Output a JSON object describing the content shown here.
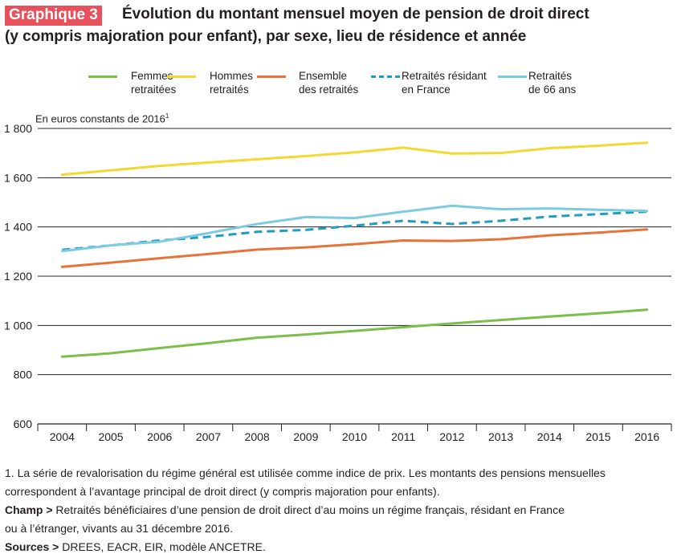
{
  "header": {
    "badge": "Graphique 3",
    "title_line1": "Évolution du montant mensuel moyen de pension de droit direct",
    "title_line2": "(y compris majoration pour enfant), par sexe, lieu de résidence et année"
  },
  "unit_label": "En euros constants de 2016",
  "unit_sup": "1",
  "colors": {
    "femmes": "#7dbd4a",
    "hommes": "#f2d832",
    "ensemble": "#e8733a",
    "france": "#1f9dbf",
    "age66": "#7ccbe0",
    "grid": "#231f20"
  },
  "chart_data": {
    "type": "line",
    "title": "Évolution du montant mensuel moyen de pension de droit direct",
    "ylabel": "En euros constants de 2016",
    "ylim": [
      600,
      1800
    ],
    "yticks": [
      600,
      800,
      1000,
      1200,
      1400,
      1600,
      1800
    ],
    "ytick_labels": [
      "600",
      "800",
      "1 000",
      "1 200",
      "1 400",
      "1 600",
      "1 800"
    ],
    "categories": [
      "2004",
      "2005",
      "2006",
      "2007",
      "2008",
      "2009",
      "2010",
      "2011",
      "2012",
      "2013",
      "2014",
      "2015",
      "2016"
    ],
    "series": [
      {
        "key": "femmes",
        "name": "Femmes\nretraitées",
        "values": [
          873,
          887,
          908,
          928,
          950,
          963,
          978,
          993,
          1008,
          1022,
          1036,
          1049,
          1064
        ],
        "dashed": false
      },
      {
        "key": "hommes",
        "name": "Hommes\nretraités",
        "values": [
          1612,
          1630,
          1648,
          1662,
          1675,
          1688,
          1703,
          1722,
          1698,
          1700,
          1720,
          1730,
          1742
        ],
        "dashed": false
      },
      {
        "key": "ensemble",
        "name": "Ensemble\ndes retraités",
        "values": [
          1238,
          1255,
          1273,
          1290,
          1308,
          1317,
          1330,
          1345,
          1343,
          1350,
          1366,
          1377,
          1390
        ],
        "dashed": false
      },
      {
        "key": "france",
        "name": "Retraités résidant\nen France",
        "values": [
          1307,
          1325,
          1345,
          1360,
          1380,
          1388,
          1405,
          1425,
          1412,
          1425,
          1442,
          1452,
          1462
        ],
        "dashed": true
      },
      {
        "key": "age66",
        "name": "Retraités\nde 66 ans",
        "values": [
          1302,
          1325,
          1340,
          1375,
          1412,
          1440,
          1436,
          1462,
          1486,
          1472,
          1475,
          1470,
          1465
        ],
        "dashed": false
      }
    ]
  },
  "notes": {
    "note1_line1": "1. La série de revalorisation du régime général est utilisée comme indice de prix. Les montants des pensions mensuelles",
    "note1_line2": "correspondent à l’avantage principal de droit direct (y compris majoration pour enfants).",
    "champ_label": "Champ >",
    "champ_line1": " Retraités bénéficiaires d’une pension de droit direct d’au moins un régime français, résidant en France",
    "champ_line2": "ou à l’étranger, vivants au 31 décembre 2016.",
    "sources_label": "Sources >",
    "sources_text": " DREES, EACR, EIR, modèle ANCETRE."
  }
}
